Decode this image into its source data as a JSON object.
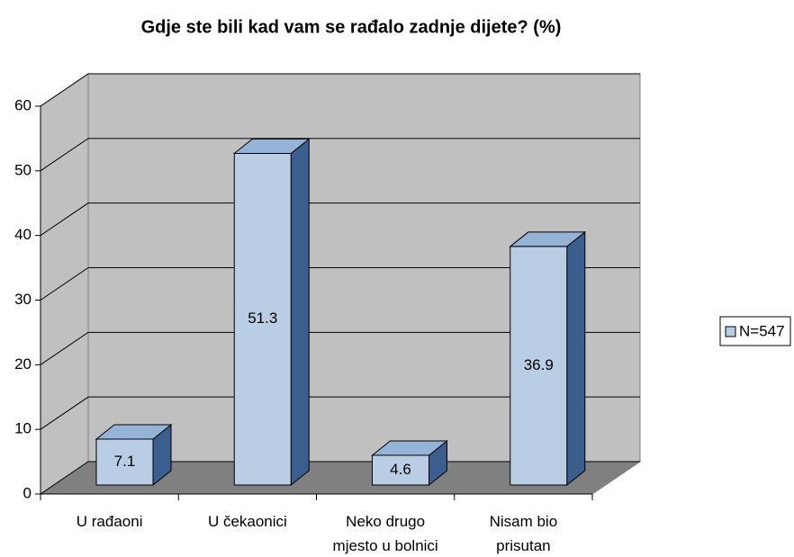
{
  "chart_data": {
    "type": "bar3d",
    "title": "Gdje ste bili kad vam se rađalo zadnje dijete? (%)",
    "categories": [
      "U rađaoni",
      "U čekaonici",
      "Neko drugo mjesto u bolnici",
      "Nisam bio prisutan"
    ],
    "series": [
      {
        "name": "N=547",
        "color": "#b9cde5",
        "values": [
          7.1,
          51.3,
          4.6,
          36.9
        ]
      }
    ],
    "ylim": [
      0,
      60
    ],
    "yticks": [
      0,
      10,
      20,
      30,
      40,
      50,
      60
    ],
    "grid": true,
    "legend": "right"
  }
}
